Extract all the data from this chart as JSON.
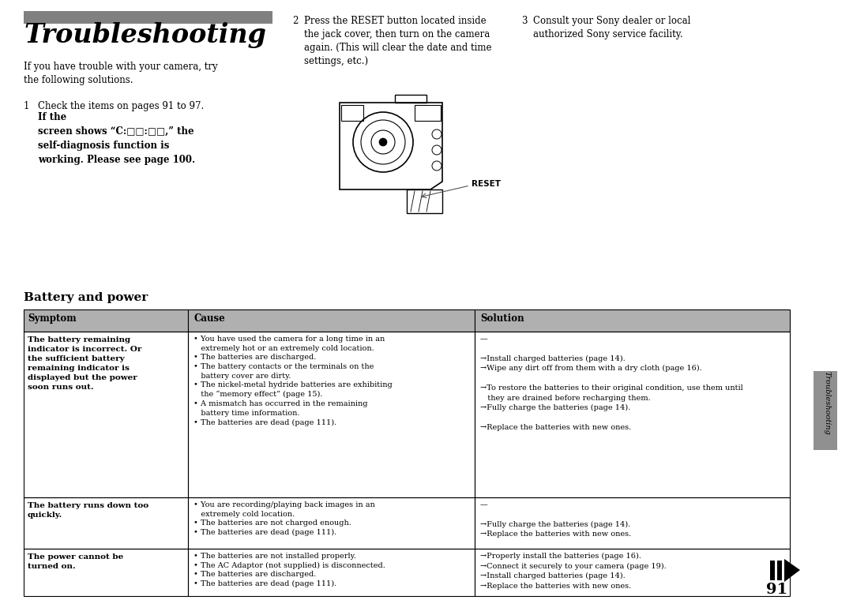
{
  "page_bg": "#ffffff",
  "page_number": "91",
  "title_bar_color": "#808080",
  "title_text": "Troubleshooting",
  "intro_text": "If you have trouble with your camera, try\nthe following solutions.",
  "step1_normal": "Check the items on pages 91 to 97. ",
  "step1_bold": "If the\nscreen shows “C:□□:□□,” the\nself-diagnosis function is\nworking. Please see page 100.",
  "step2_num": "2",
  "step2_text": "Press the RESET button located inside\nthe jack cover, then turn on the camera\nagain. (This will clear the date and time\nsettings, etc.)",
  "step3_num": "3",
  "step3_text": "Consult your Sony dealer or local\nauthorized Sony service facility.",
  "reset_label": "RESET",
  "section_title": "Battery and power",
  "header_bg": "#b0b0b0",
  "header_symptom": "Symptom",
  "header_cause": "Cause",
  "header_solution": "Solution",
  "row1_symptom_bold": "The battery remaining\nindicator is incorrect. Or\nthe sufficient battery\nremaining indicator is\ndisplayed but the power\nsoon runs out.",
  "row1_cause": "• You have used the camera for a long time in an\n   extremely hot or an extremely cold location.\n• The batteries are discharged.\n• The battery contacts or the terminals on the\n   battery cover are dirty.\n• The nickel-metal hydride batteries are exhibiting\n   the “memory effect” (page 15).\n• A mismatch has occurred in the remaining\n   battery time information.\n• The batteries are dead (page 111).",
  "row1_solution": "—\n\n→Install charged batteries (page 14).\n→Wipe any dirt off from them with a dry cloth (page 16).\n\n→To restore the batteries to their original condition, use them until\n   they are drained before recharging them.\n→Fully charge the batteries (page 14).\n\n→Replace the batteries with new ones.",
  "row2_symptom_bold": "The battery runs down too\nquickly.",
  "row2_cause": "• You are recording/playing back images in an\n   extremely cold location.\n• The batteries are not charged enough.\n• The batteries are dead (page 111).",
  "row2_solution": "—\n\n→Fully charge the batteries (page 14).\n→Replace the batteries with new ones.",
  "row3_symptom_bold": "The power cannot be\nturned on.",
  "row3_cause": "• The batteries are not installed properly.\n• The AC Adaptor (not supplied) is disconnected.\n• The batteries are discharged.\n• The batteries are dead (page 111).",
  "row3_solution": "→Properly install the batteries (page 16).\n→Connect it securely to your camera (page 19).\n→Install charged batteries (page 14).\n→Replace the batteries with new ones.",
  "sidebar_text": "Troubleshooting",
  "sidebar_gray_color": "#909090"
}
